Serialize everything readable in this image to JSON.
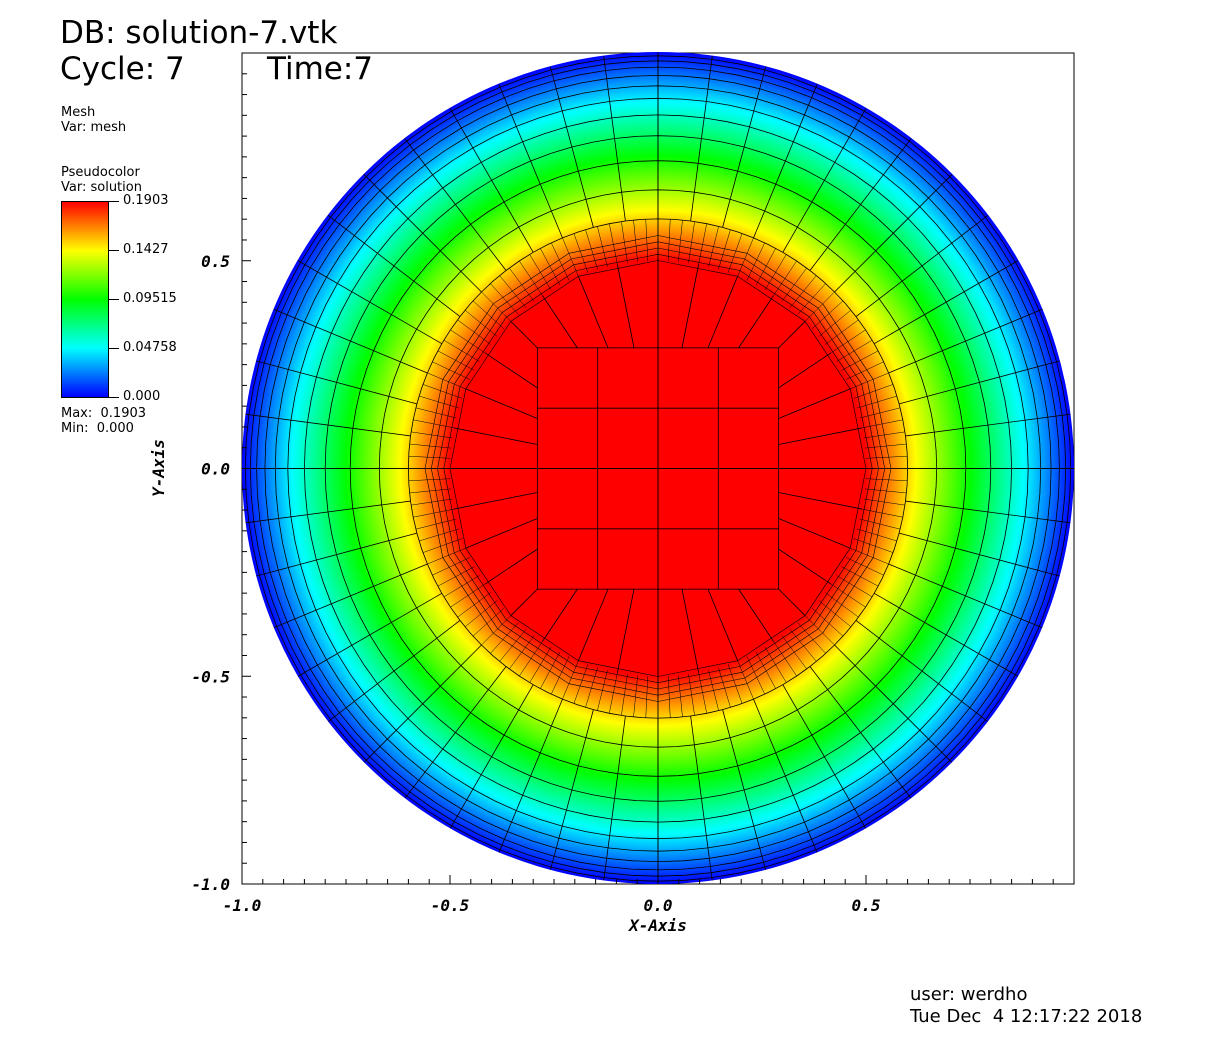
{
  "header": {
    "db_title": "DB: solution-7.vtk",
    "cycle": "Cycle: 7",
    "time": "Time:7"
  },
  "legend": {
    "mesh_title": "Mesh",
    "mesh_var": "Var: mesh",
    "pseudocolor_title": "Pseudocolor",
    "pseudocolor_var": "Var: solution",
    "ticks": [
      "0.1903",
      "0.1427",
      "0.09515",
      "0.04758",
      "0.000"
    ],
    "max": "Max:  0.1903",
    "min": "Min:  0.000"
  },
  "footer": {
    "user": "user: werdho",
    "date": "Tue Dec  4 12:17:22 2018"
  },
  "colors": {
    "colormap": [
      "#0000ff",
      "#00ffff",
      "#00ff00",
      "#ffff00",
      "#ff0000"
    ],
    "background": "#ffffff",
    "mesh_line": "#000000"
  },
  "chart_data": {
    "type": "heatmap",
    "description_plot": "pseudocolor field on a circular domain with overlaid quad mesh",
    "xlabel": "X-Axis",
    "ylabel": "Y-Axis",
    "xlim": [
      -1.0,
      1.0
    ],
    "ylim": [
      -1.0,
      1.0
    ],
    "x_ticks": [
      "-1.0",
      "-0.5",
      "0.0",
      "0.5"
    ],
    "y_ticks": [
      "-1.0",
      "-0.5",
      "0.0",
      "0.5"
    ],
    "x_tick_values": [
      -1.0,
      -0.5,
      0.0,
      0.5
    ],
    "y_tick_values": [
      -1.0,
      -0.5,
      0.0,
      0.5
    ],
    "domain_radius": 1.0,
    "value_range": [
      0.0,
      0.1903
    ],
    "radial_profile": [
      {
        "r": 0.0,
        "value": 0.1903
      },
      {
        "r": 0.5,
        "value": 0.1903
      },
      {
        "r": 0.55,
        "value": 0.17
      },
      {
        "r": 0.62,
        "value": 0.1427
      },
      {
        "r": 0.75,
        "value": 0.09515
      },
      {
        "r": 0.88,
        "value": 0.04758
      },
      {
        "r": 1.0,
        "value": 0.0
      }
    ],
    "grid": false,
    "legend_position": "left"
  }
}
